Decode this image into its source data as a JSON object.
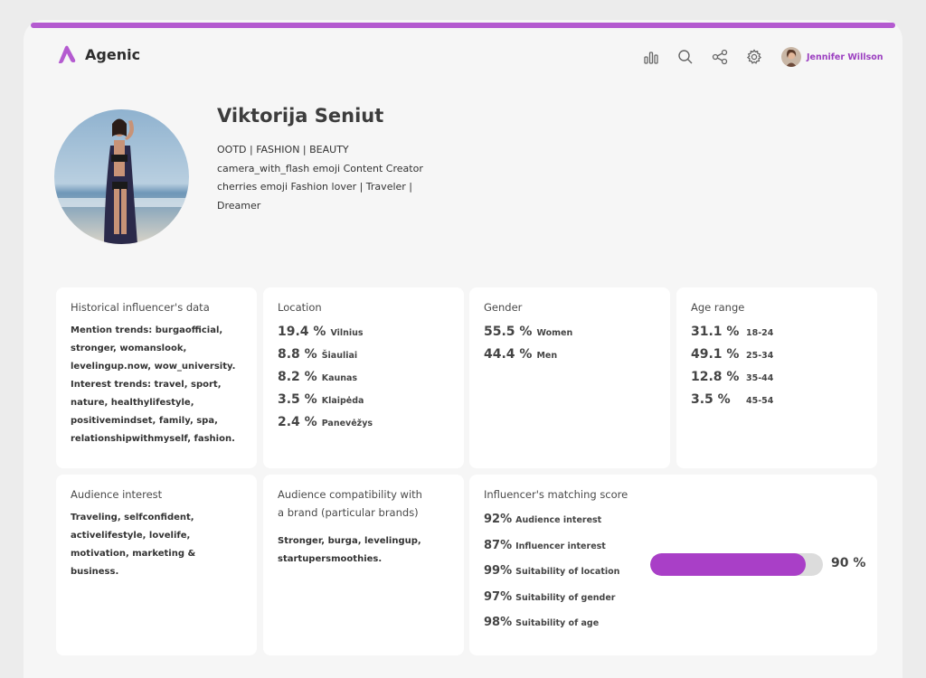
{
  "colors": {
    "accent": "#b45ad0",
    "brand": "#a93fc7",
    "progress_track": "#dcdcdc"
  },
  "app": {
    "name": "Agenic",
    "logo_icon": "agenic-logo-icon"
  },
  "nav": {
    "icons": [
      "bar-chart-icon",
      "search-icon",
      "share-icon",
      "gear-icon"
    ],
    "user_name": "Jennifer Willson"
  },
  "profile": {
    "name": "Viktorija Seniut",
    "bio": [
      "OOTD | FASHION | BEAUTY",
      "camera_with_flash emoji Content Creator",
      "cherries emoji Fashion lover | Traveler |",
      "Dreamer"
    ]
  },
  "historical": {
    "title": "Historical influencer's data",
    "text": "Mention trends: burgaofficial, stronger, womanslook, levelingup.now, wow_university. Interest trends: travel, sport, nature, healthylifestyle, positivemindset, family, spa, relationshipwithmyself, fashion."
  },
  "location": {
    "title": "Location",
    "rows": [
      {
        "value": "19.4 %",
        "label": "Vilnius"
      },
      {
        "value": "8.8 %",
        "label": "Šiauliai"
      },
      {
        "value": "8.2 %",
        "label": "Kaunas"
      },
      {
        "value": "3.5 %",
        "label": "Klaipėda"
      },
      {
        "value": "2.4 %",
        "label": "Panevėžys"
      }
    ]
  },
  "gender": {
    "title": "Gender",
    "rows": [
      {
        "value": "55.5 %",
        "label": "Women"
      },
      {
        "value": "44.4 %",
        "label": "Men"
      }
    ]
  },
  "age": {
    "title": "Age range",
    "rows": [
      {
        "value": "31.1 %",
        "label": "18-24"
      },
      {
        "value": "49.1 %",
        "label": "25-34"
      },
      {
        "value": "12.8 %",
        "label": "35-44"
      },
      {
        "value": "3.5 %",
        "label": "45-54"
      }
    ]
  },
  "audience_interest": {
    "title": "Audience interest",
    "text": "Traveling, selfconfident, activelifestyle, lovelife, motivation, marketing & business."
  },
  "compatibility": {
    "title": "Audience compatibility with a brand (particular brands)",
    "text": "Stronger, burga, levelingup, startupersmoothies."
  },
  "matching": {
    "title": "Influencer's matching score",
    "rows": [
      {
        "value": "92%",
        "label": "Audience interest"
      },
      {
        "value": "87%",
        "label": "Influencer interest"
      },
      {
        "value": "99%",
        "label": "Suitability of location"
      },
      {
        "value": "97%",
        "label": "Suitability of gender"
      },
      {
        "value": "98%",
        "label": "Suitability of age"
      }
    ],
    "overall_label": "90 %",
    "overall_fraction": 0.9
  }
}
